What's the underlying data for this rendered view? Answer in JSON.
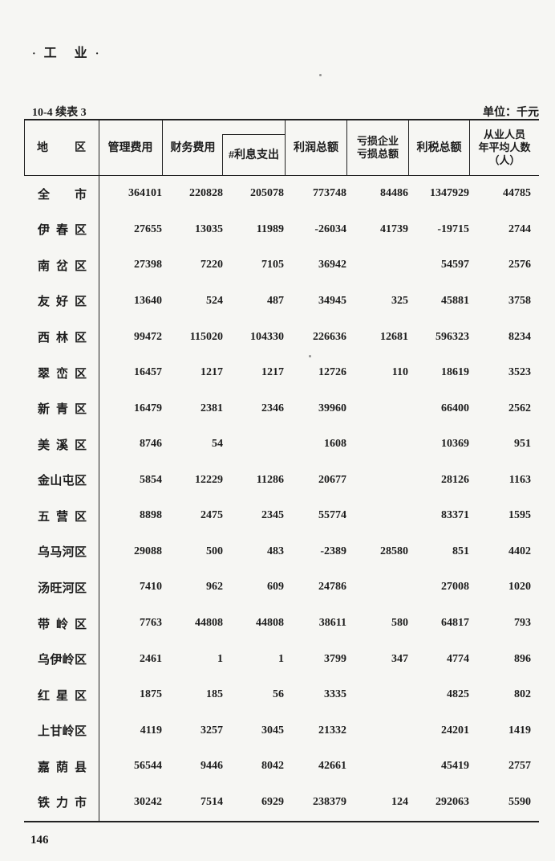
{
  "page": {
    "bullet": "·",
    "category_title": "工　业",
    "table_label": "10-4 续表 3",
    "unit_label": "单位：千元",
    "page_number": "146"
  },
  "table": {
    "columns": {
      "region": "地区",
      "mgmt": "管理费用",
      "finance": "财务费用",
      "interest": "#利息支出",
      "profit": "利润总额",
      "loss_line1": "亏损企业",
      "loss_line2": "亏损总额",
      "profit_tax": "利税总额",
      "emp_line1": "从业人员",
      "emp_line2": "年平均人数",
      "emp_line3": "（人）"
    },
    "rows": [
      {
        "region": "全市",
        "values": [
          "364101",
          "220828",
          "205078",
          "773748",
          "84486",
          "1347929",
          "44785"
        ]
      },
      {
        "region": "伊春区",
        "values": [
          "27655",
          "13035",
          "11989",
          "-26034",
          "41739",
          "-19715",
          "2744"
        ]
      },
      {
        "region": "南岔区",
        "values": [
          "27398",
          "7220",
          "7105",
          "36942",
          "",
          "54597",
          "2576"
        ]
      },
      {
        "region": "友好区",
        "values": [
          "13640",
          "524",
          "487",
          "34945",
          "325",
          "45881",
          "3758"
        ]
      },
      {
        "region": "西林区",
        "values": [
          "99472",
          "115020",
          "104330",
          "226636",
          "12681",
          "596323",
          "8234"
        ]
      },
      {
        "region": "翠峦区",
        "values": [
          "16457",
          "1217",
          "1217",
          "12726",
          "110",
          "18619",
          "3523"
        ]
      },
      {
        "region": "新青区",
        "values": [
          "16479",
          "2381",
          "2346",
          "39960",
          "",
          "66400",
          "2562"
        ]
      },
      {
        "region": "美溪区",
        "values": [
          "8746",
          "54",
          "",
          "1608",
          "",
          "10369",
          "951"
        ]
      },
      {
        "region": "金山屯区",
        "values": [
          "5854",
          "12229",
          "11286",
          "20677",
          "",
          "28126",
          "1163"
        ]
      },
      {
        "region": "五营区",
        "values": [
          "8898",
          "2475",
          "2345",
          "55774",
          "",
          "83371",
          "1595"
        ]
      },
      {
        "region": "乌马河区",
        "values": [
          "29088",
          "500",
          "483",
          "-2389",
          "28580",
          "851",
          "4402"
        ]
      },
      {
        "region": "汤旺河区",
        "values": [
          "7410",
          "962",
          "609",
          "24786",
          "",
          "27008",
          "1020"
        ]
      },
      {
        "region": "带岭区",
        "values": [
          "7763",
          "44808",
          "44808",
          "38611",
          "580",
          "64817",
          "793"
        ]
      },
      {
        "region": "乌伊岭区",
        "values": [
          "2461",
          "1",
          "1",
          "3799",
          "347",
          "4774",
          "896"
        ]
      },
      {
        "region": "红星区",
        "values": [
          "1875",
          "185",
          "56",
          "3335",
          "",
          "4825",
          "802"
        ]
      },
      {
        "region": "上甘岭区",
        "values": [
          "4119",
          "3257",
          "3045",
          "21332",
          "",
          "24201",
          "1419"
        ]
      },
      {
        "region": "嘉荫县",
        "values": [
          "56544",
          "9446",
          "8042",
          "42661",
          "",
          "45419",
          "2757"
        ]
      },
      {
        "region": "铁力市",
        "values": [
          "30242",
          "7514",
          "6929",
          "238379",
          "124",
          "292063",
          "5590"
        ]
      }
    ]
  }
}
